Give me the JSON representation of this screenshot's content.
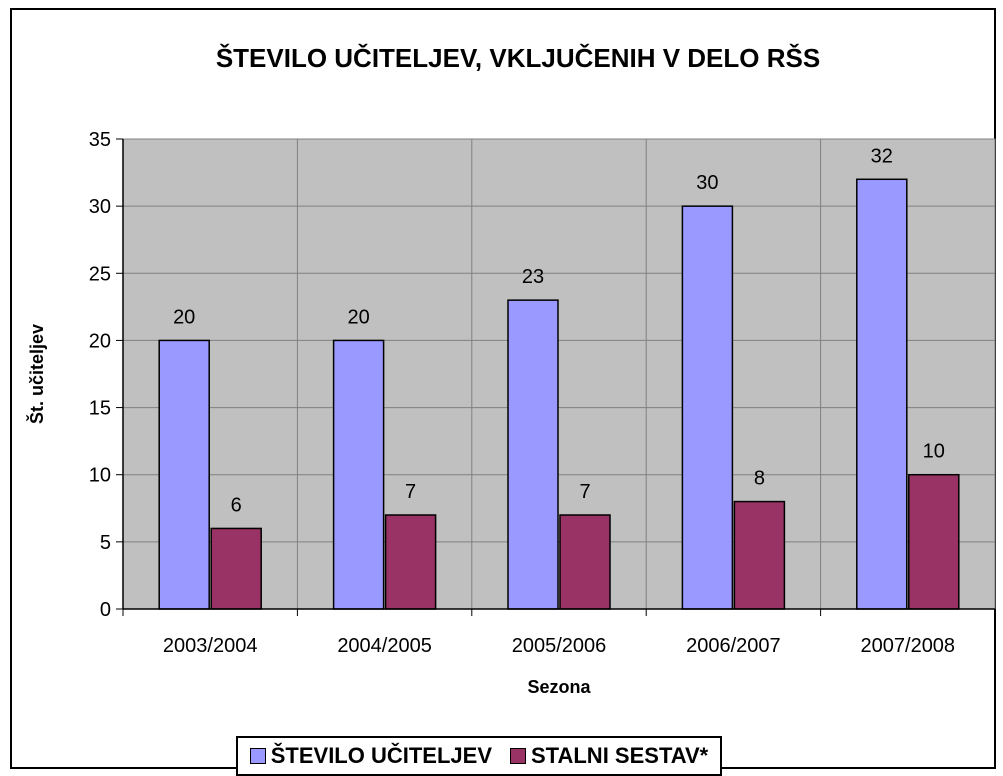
{
  "chart_data": {
    "type": "bar",
    "title": "ŠTEVILO UČITELJEV, VKLJUČENIH V DELO RŠS",
    "xlabel": "Sezona",
    "ylabel": "Št. učiteljev",
    "categories": [
      "2003/2004",
      "2004/2005",
      "2005/2006",
      "2006/2007",
      "2007/2008"
    ],
    "series": [
      {
        "name": "ŠTEVILO UČITELJEV",
        "values": [
          20,
          20,
          23,
          30,
          32
        ],
        "color": "#9999FF"
      },
      {
        "name": "STALNI SESTAV*",
        "values": [
          6,
          7,
          7,
          8,
          10
        ],
        "color": "#993366"
      }
    ],
    "ylim": [
      0,
      35
    ],
    "yticks": [
      0,
      5,
      10,
      15,
      20,
      25,
      30,
      35
    ],
    "grid": true,
    "plot_background": "#C0C0C0",
    "legend_position": "bottom",
    "data_labels": true
  }
}
